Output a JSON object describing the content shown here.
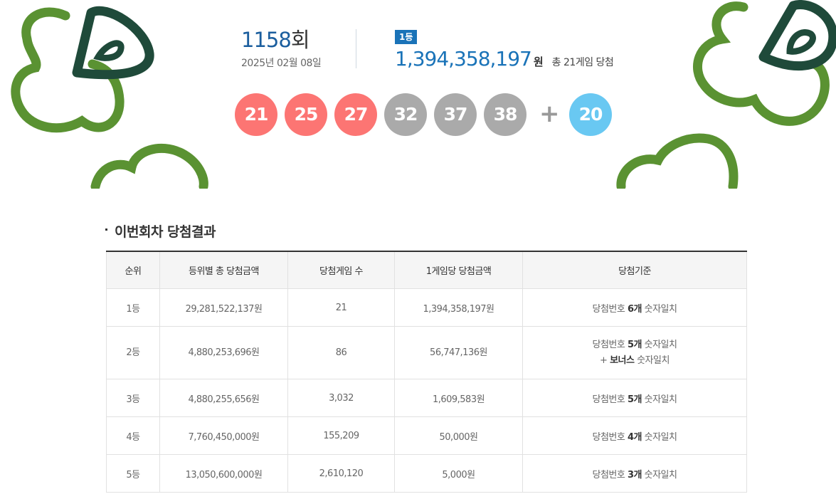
{
  "round": {
    "number": "1158",
    "suffix": "회",
    "date": "2025년 02월 08일"
  },
  "first_prize": {
    "badge": "1등",
    "amount": "1,394,358,197",
    "unit": "원",
    "games": "총 21게임 당첨"
  },
  "winning_numbers": [
    "21",
    "25",
    "27",
    "32",
    "37",
    "38"
  ],
  "ball_colors": [
    "#fc7573",
    "#fc7573",
    "#fc7573",
    "#aaaaaa",
    "#aaaaaa",
    "#aaaaaa"
  ],
  "plus_sign": "+",
  "bonus_number": "20",
  "bonus_color": "#69c8f2",
  "section_title": "이번회차 당첨결과",
  "table": {
    "headers": [
      "순위",
      "등위별 총 당첨금액",
      "당첨게임 수",
      "1게임당 당첨금액",
      "당첨기준"
    ],
    "rows": [
      {
        "rank": "1등",
        "total": "29,281,522,137원",
        "games": "21",
        "per_game": "1,394,358,197원",
        "criteria_pre": "당첨번호 ",
        "criteria_count": "6개",
        "criteria_post": " 숫자일치",
        "criteria_extra": ""
      },
      {
        "rank": "2등",
        "total": "4,880,253,696원",
        "games": "86",
        "per_game": "56,747,136원",
        "criteria_pre": "당첨번호 ",
        "criteria_count": "5개",
        "criteria_post": " 숫자일치",
        "criteria_extra_pre": "+ ",
        "criteria_extra_bold": "보너스",
        "criteria_extra_post": " 숫자일치"
      },
      {
        "rank": "3등",
        "total": "4,880,255,656원",
        "games": "3,032",
        "per_game": "1,609,583원",
        "criteria_pre": "당첨번호 ",
        "criteria_count": "5개",
        "criteria_post": " 숫자일치"
      },
      {
        "rank": "4등",
        "total": "7,760,450,000원",
        "games": "155,209",
        "per_game": "50,000원",
        "criteria_pre": "당첨번호 ",
        "criteria_count": "4개",
        "criteria_post": " 숫자일치"
      },
      {
        "rank": "5등",
        "total": "13,050,600,000원",
        "games": "2,610,120",
        "per_game": "5,000원",
        "criteria_pre": "당첨번호 ",
        "criteria_count": "3개",
        "criteria_post": " 숫자일치"
      }
    ]
  },
  "colors": {
    "clover_light": "#5a9232",
    "clover_dark": "#1f4a3a",
    "accent_blue": "#1a73b8"
  }
}
